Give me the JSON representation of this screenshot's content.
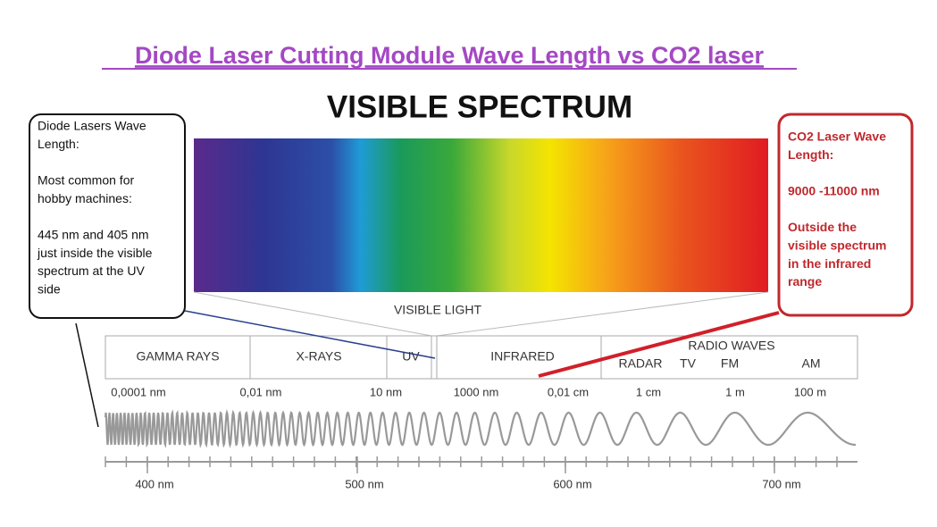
{
  "title": "Diode Laser Cutting Module Wave Length vs CO2 laser",
  "heading": "VISIBLE SPECTRUM",
  "left_note": {
    "paragraphs": [
      [
        "Diode Lasers Wave",
        "Length:"
      ],
      [
        "Most common for",
        "hobby machines:"
      ],
      [
        "445 nm and 405 nm",
        "just inside the visible",
        "spectrum at the UV",
        "side"
      ]
    ]
  },
  "right_note": {
    "paragraphs": [
      [
        "CO2 Laser Wave",
        "Length:"
      ],
      [
        "9000 -11000 nm"
      ],
      [
        "Outside the",
        "visible spectrum",
        "in the infrared",
        "range"
      ]
    ]
  },
  "visible_label": "VISIBLE LIGHT",
  "bands": [
    "GAMMA RAYS",
    "X-RAYS",
    "UV",
    "INFRARED",
    "RADIO WAVES"
  ],
  "radio_sub": [
    "RADAR",
    "TV",
    "FM",
    "AM"
  ],
  "scale_labels": [
    "0,0001 nm",
    "0,01 nm",
    "10 nm",
    "1000 nm",
    "0,01 cm",
    "1 cm",
    "1 m",
    "100 m"
  ],
  "nm_labels": [
    "400 nm",
    "500 nm",
    "600 nm",
    "700 nm"
  ]
}
